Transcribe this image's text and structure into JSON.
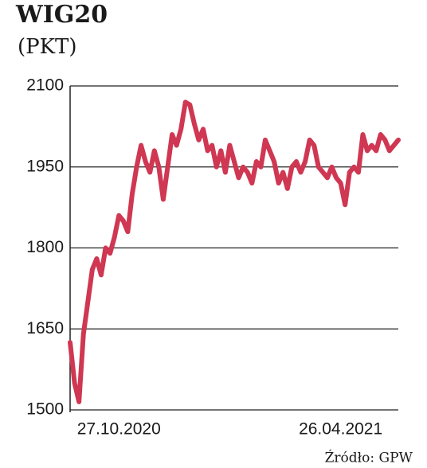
{
  "chart_data": {
    "type": "line",
    "title": "WIG20",
    "subtitle": "(PKT)",
    "source": "Źródło: GPW",
    "categories": [
      null,
      null,
      null,
      null,
      null,
      null,
      null,
      null,
      null,
      null,
      null,
      "27.10.2020",
      null,
      null,
      null,
      null,
      null,
      null,
      null,
      null,
      null,
      null,
      null,
      null,
      null,
      null,
      null,
      null,
      null,
      null,
      null,
      null,
      null,
      null,
      null,
      null,
      null,
      null,
      null,
      null,
      null,
      null,
      null,
      null,
      null,
      null,
      null,
      null,
      null,
      null,
      null,
      null,
      null,
      null,
      null,
      null,
      null,
      null,
      null,
      null,
      null,
      "26.04.2021",
      null,
      null,
      null,
      null,
      null,
      null,
      null,
      null,
      null,
      null,
      null,
      null,
      null
    ],
    "series": [
      {
        "name": "WIG20",
        "color": "#cf3752",
        "values": [
          1625,
          1550,
          1515,
          1640,
          1700,
          1760,
          1780,
          1750,
          1800,
          1790,
          1820,
          1860,
          1850,
          1830,
          1900,
          1950,
          1990,
          1960,
          1940,
          1980,
          1950,
          1890,
          1950,
          2010,
          1990,
          2020,
          2070,
          2065,
          2030,
          2000,
          2020,
          1980,
          1990,
          1950,
          1980,
          1940,
          1990,
          1960,
          1930,
          1950,
          1940,
          1920,
          1960,
          1950,
          2000,
          1980,
          1960,
          1920,
          1940,
          1910,
          1950,
          1960,
          1940,
          1960,
          2000,
          1990,
          1950,
          1940,
          1930,
          1950,
          1930,
          1920,
          1880,
          1940,
          1950,
          1940,
          2010,
          1980,
          1990,
          1980,
          2010,
          2000,
          1980,
          1990,
          2000
        ]
      }
    ],
    "ylim": [
      1500,
      2100
    ],
    "yticks": [
      1500,
      1650,
      1800,
      1950,
      2100
    ],
    "grid": true
  }
}
